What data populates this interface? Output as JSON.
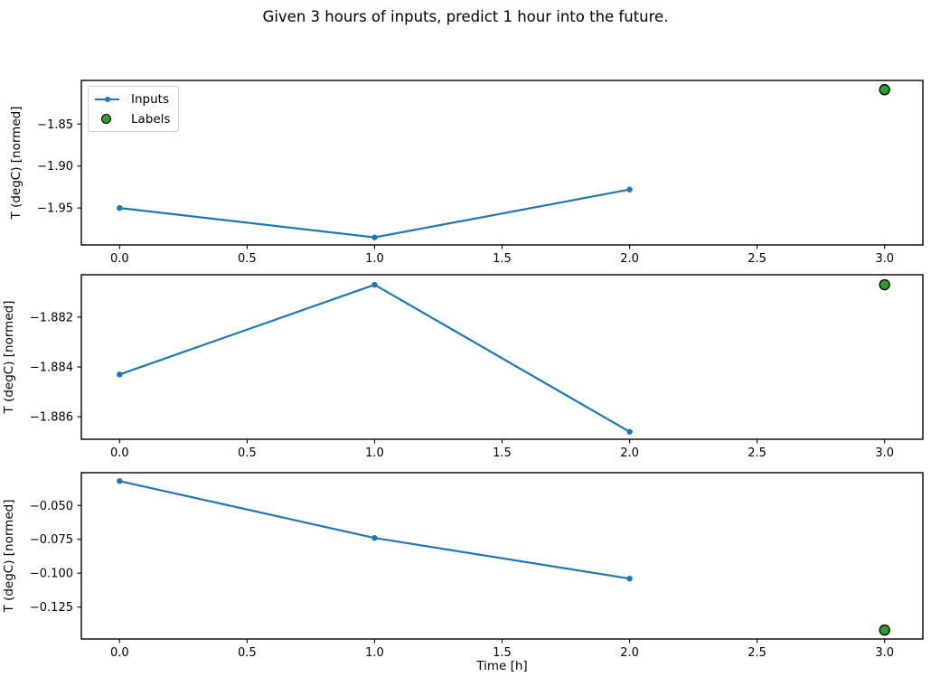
{
  "figure": {
    "title": "Given 3 hours of inputs, predict 1 hour into the future.",
    "colors": {
      "inputs": "#1f77b4",
      "labels_fill": "#2ca02c",
      "labels_edge": "#000000",
      "spine": "#000000",
      "text": "#000000",
      "legend_border": "#d0d0d0"
    }
  },
  "legend": {
    "items": [
      {
        "label": "Inputs",
        "sample": "line-with-dot"
      },
      {
        "label": "Labels",
        "sample": "green-circle"
      }
    ]
  },
  "x_axis": {
    "label": "Time [h]"
  },
  "chart_data": [
    {
      "type": "line",
      "name": "subplot-1",
      "ylabel": "T (degC) [normed]",
      "xlim": [
        -0.15,
        3.15
      ],
      "ylim": [
        -1.994,
        -1.798
      ],
      "xticks": [
        0.0,
        0.5,
        1.0,
        1.5,
        2.0,
        2.5,
        3.0
      ],
      "xtick_labels": [
        "0.0",
        "0.5",
        "1.0",
        "1.5",
        "2.0",
        "2.5",
        "3.0"
      ],
      "yticks": [
        -1.85,
        -1.9,
        -1.95
      ],
      "ytick_labels": [
        "−1.85",
        "−1.90",
        "−1.95"
      ],
      "grid": false,
      "series": [
        {
          "name": "Inputs",
          "type": "line",
          "x": [
            0,
            1,
            2
          ],
          "y": [
            -1.95,
            -1.985,
            -1.928
          ]
        },
        {
          "name": "Labels",
          "type": "scatter",
          "x": [
            3
          ],
          "y": [
            -1.809
          ]
        }
      ]
    },
    {
      "type": "line",
      "name": "subplot-2",
      "ylabel": "T (degC) [normed]",
      "xlim": [
        -0.15,
        3.15
      ],
      "ylim": [
        -1.8869,
        -1.8803
      ],
      "xticks": [
        0.0,
        0.5,
        1.0,
        1.5,
        2.0,
        2.5,
        3.0
      ],
      "xtick_labels": [
        "0.0",
        "0.5",
        "1.0",
        "1.5",
        "2.0",
        "2.5",
        "3.0"
      ],
      "yticks": [
        -1.882,
        -1.884,
        -1.886
      ],
      "ytick_labels": [
        "−1.882",
        "−1.884",
        "−1.886"
      ],
      "grid": false,
      "series": [
        {
          "name": "Inputs",
          "type": "line",
          "x": [
            0,
            1,
            2
          ],
          "y": [
            -1.8843,
            -1.8807,
            -1.8866
          ]
        },
        {
          "name": "Labels",
          "type": "scatter",
          "x": [
            3
          ],
          "y": [
            -1.8807
          ]
        }
      ]
    },
    {
      "type": "line",
      "name": "subplot-3",
      "ylabel": "T (degC) [normed]",
      "xlim": [
        -0.15,
        3.15
      ],
      "ylim": [
        -0.1486,
        -0.0258
      ],
      "xticks": [
        0.0,
        0.5,
        1.0,
        1.5,
        2.0,
        2.5,
        3.0
      ],
      "xtick_labels": [
        "0.0",
        "0.5",
        "1.0",
        "1.5",
        "2.0",
        "2.5",
        "3.0"
      ],
      "yticks": [
        -0.05,
        -0.075,
        -0.1,
        -0.125
      ],
      "ytick_labels": [
        "−0.050",
        "−0.075",
        "−0.100",
        "−0.125"
      ],
      "grid": false,
      "series": [
        {
          "name": "Inputs",
          "type": "line",
          "x": [
            0,
            1,
            2
          ],
          "y": [
            -0.032,
            -0.074,
            -0.104
          ]
        },
        {
          "name": "Labels",
          "type": "scatter",
          "x": [
            3
          ],
          "y": [
            -0.142
          ]
        }
      ]
    }
  ]
}
